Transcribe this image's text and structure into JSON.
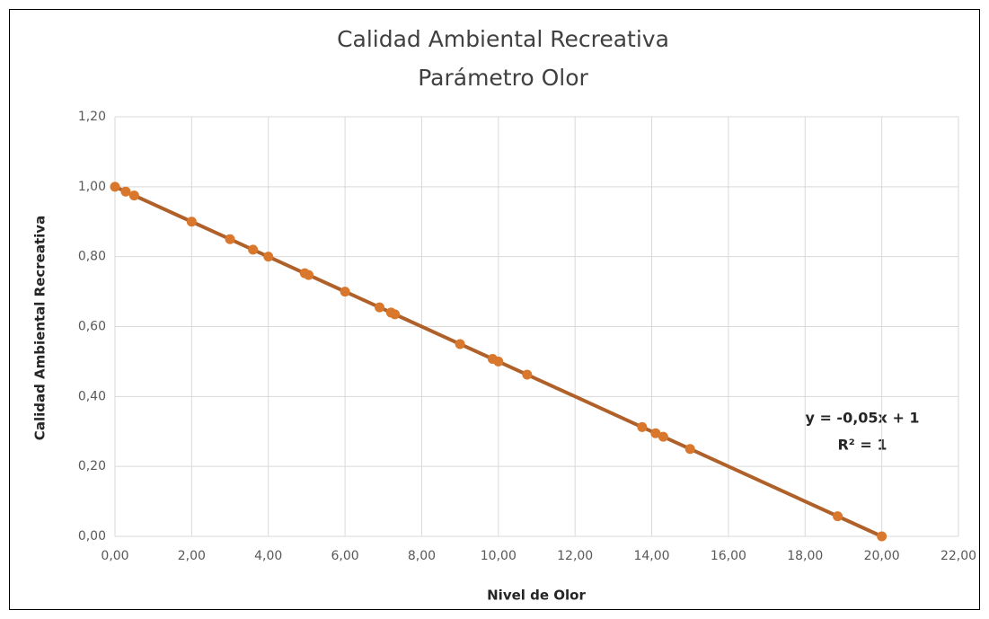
{
  "chart_data": {
    "type": "scatter",
    "title": "Calidad Ambiental Recreativa",
    "subtitle": "Parámetro Olor",
    "x_label": "Nivel de Olor",
    "y_label": "Calidad Ambiental Recreativa",
    "annotations": [
      "y = -0,05x + 1",
      "R² = 1"
    ],
    "grid": true,
    "series": [
      {
        "name": "Calidad Ambiental Recreativa",
        "color": "#d9782d",
        "x": [
          0,
          0.28,
          0.5,
          2,
          3,
          3.6,
          4,
          4.95,
          5.05,
          6,
          6.9,
          7.2,
          7.3,
          9,
          9.85,
          10,
          10.75,
          13.75,
          14.1,
          14.3,
          15,
          18.85,
          20
        ],
        "values": [
          1,
          0.986,
          0.975,
          0.9,
          0.85,
          0.82,
          0.8,
          0.7525,
          0.7475,
          0.7,
          0.655,
          0.64,
          0.635,
          0.55,
          0.5075,
          0.5,
          0.4625,
          0.3125,
          0.295,
          0.285,
          0.25,
          0.0575,
          0
        ]
      }
    ],
    "xlim": [
      0,
      22
    ],
    "xticks": [
      {
        "value": 0,
        "label": "0,00"
      },
      {
        "value": 2,
        "label": "2,00"
      },
      {
        "value": 4,
        "label": "4,00"
      },
      {
        "value": 6,
        "label": "6,00"
      },
      {
        "value": 8,
        "label": "8,00"
      },
      {
        "value": 10,
        "label": "10,00"
      },
      {
        "value": 12,
        "label": "12,00"
      },
      {
        "value": 14,
        "label": "14,00"
      },
      {
        "value": 16,
        "label": "16,00"
      },
      {
        "value": 18,
        "label": "18,00"
      },
      {
        "value": 20,
        "label": "20,00"
      },
      {
        "value": 22,
        "label": "22,00"
      }
    ],
    "ylim": [
      0,
      1.2
    ],
    "yticks": [
      {
        "value": 0,
        "label": "0,00"
      },
      {
        "value": 0.2,
        "label": "0,20"
      },
      {
        "value": 0.4,
        "label": "0,40"
      },
      {
        "value": 0.6,
        "label": "0,60"
      },
      {
        "value": 0.8,
        "label": "0,80"
      },
      {
        "value": 1,
        "label": "1,00"
      },
      {
        "value": 1.2,
        "label": "1,20"
      }
    ]
  }
}
